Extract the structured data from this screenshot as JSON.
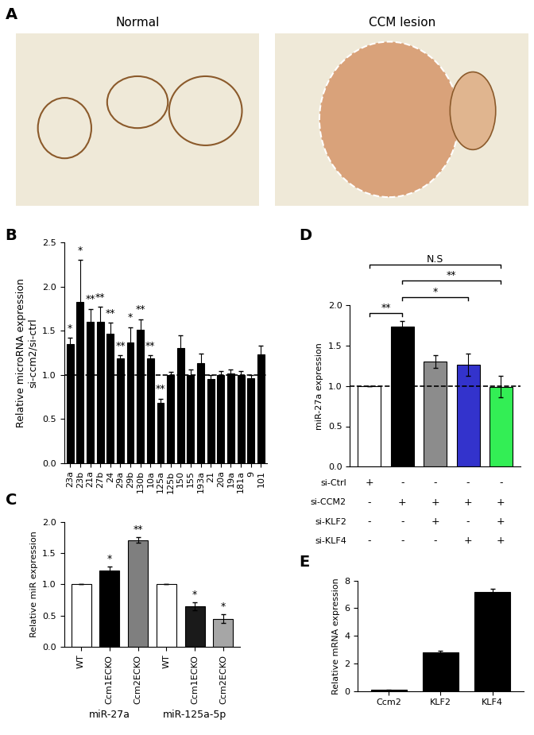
{
  "images": {
    "title": "A",
    "panels": [
      "Normal",
      "CCM lesion"
    ]
  },
  "chart_data": [
    {
      "type": "bar",
      "title": "B",
      "y_label": "Relative microRNA expression\nsi-ccm2/si-ctrl",
      "categories": [
        "23a",
        "23b",
        "21a",
        "27b",
        "24",
        "29a",
        "29b",
        "130b",
        "10a",
        "125a",
        "125b",
        "150",
        "155",
        "193a",
        "21",
        "20a",
        "19a",
        "181a",
        "9",
        "101"
      ],
      "values": [
        1.35,
        1.83,
        1.6,
        1.6,
        1.47,
        1.19,
        1.37,
        1.51,
        1.19,
        0.68,
        1.0,
        1.3,
        1.0,
        1.13,
        0.95,
        1.0,
        1.02,
        1.0,
        0.96,
        1.23
      ],
      "errors": [
        0.07,
        0.47,
        0.15,
        0.17,
        0.12,
        0.03,
        0.17,
        0.12,
        0.03,
        0.05,
        0.03,
        0.15,
        0.06,
        0.11,
        0.05,
        0.04,
        0.04,
        0.04,
        0.04,
        0.1
      ],
      "annotations": [
        "*",
        "*",
        "**",
        "**",
        "**",
        "**",
        "*",
        "**",
        "**",
        "**",
        null,
        null,
        null,
        null,
        null,
        null,
        null,
        null,
        null,
        null
      ],
      "color": "#000000",
      "reference_line": 1.0,
      "ylim": [
        0,
        2.5
      ],
      "yticks": [
        {
          "value": 0,
          "label": "0.0"
        },
        {
          "value": 0.5,
          "label": "0.5"
        },
        {
          "value": 1.0,
          "label": "1.0"
        },
        {
          "value": 1.5,
          "label": "1.5"
        },
        {
          "value": 2.0,
          "label": "2.0"
        },
        {
          "value": 2.5,
          "label": "2.5"
        }
      ]
    },
    {
      "type": "bar",
      "title": "C",
      "y_label": "Relative miR expression",
      "categories": [
        "WT",
        "Ccm1ECKO",
        "Ccm2ECKO",
        "WT",
        "Ccm1ECKO",
        "Ccm2ECKO"
      ],
      "groups": [
        "miR-27a",
        "miR-125a-5p"
      ],
      "values": [
        1.0,
        1.22,
        1.71,
        1.0,
        0.65,
        0.45
      ],
      "errors": [
        0.0,
        0.06,
        0.04,
        0.0,
        0.06,
        0.07
      ],
      "annotations": [
        null,
        "*",
        "**",
        null,
        "*",
        "*"
      ],
      "colors": [
        "#ffffff",
        "#000000",
        "#7f7f7f",
        "#ffffff",
        "#1a1a1a",
        "#a6a6a6"
      ],
      "ylim": [
        0,
        2.0
      ],
      "yticks": [
        {
          "value": 0,
          "label": "0.0"
        },
        {
          "value": 0.5,
          "label": "0.5"
        },
        {
          "value": 1.0,
          "label": "1.0"
        },
        {
          "value": 1.5,
          "label": "1.5"
        },
        {
          "value": 2.0,
          "label": "2.0"
        }
      ]
    },
    {
      "type": "bar",
      "title": "D",
      "y_label": "miR-27a expression",
      "categories": [
        null,
        null,
        null,
        null,
        null
      ],
      "values": [
        1.0,
        1.73,
        1.3,
        1.26,
        0.99
      ],
      "errors": [
        0.0,
        0.07,
        0.08,
        0.14,
        0.13
      ],
      "colors": [
        "#ffffff",
        "#000000",
        "#8c8c8c",
        "#3333cc",
        "#33ee55"
      ],
      "reference_line": 1.0,
      "tick_labels": "y",
      "comparisons": [
        {
          "from": 0,
          "to": 1,
          "label": "**"
        },
        {
          "from": 1,
          "to": 3,
          "label": "*"
        },
        {
          "from": 1,
          "to": 4,
          "label": "**"
        },
        {
          "from": 0,
          "to": 4,
          "label": "N.S"
        }
      ],
      "conditions": [
        {
          "name": "si-Ctrl",
          "values": [
            "+",
            "-",
            "-",
            "-",
            "-"
          ]
        },
        {
          "name": "si-CCM2",
          "values": [
            "-",
            "+",
            "+",
            "+",
            "+"
          ]
        },
        {
          "name": "si-KLF2",
          "values": [
            "-",
            "-",
            "+",
            "-",
            "+"
          ]
        },
        {
          "name": "si-KLF4",
          "values": [
            "-",
            "-",
            "-",
            "+",
            "+"
          ]
        }
      ],
      "ylim": [
        0,
        2.0
      ],
      "yticks": [
        {
          "value": 0,
          "label": "0.0"
        },
        {
          "value": 0.5,
          "label": "0.5"
        },
        {
          "value": 1.0,
          "label": "1.0"
        },
        {
          "value": 1.5,
          "label": "1.5"
        },
        {
          "value": 2.0,
          "label": "2.0"
        }
      ]
    },
    {
      "type": "bar",
      "title": "E",
      "y_label": "Relative mRNA expression",
      "categories": [
        "Ccm2",
        "KLF2",
        "KLF4"
      ],
      "values": [
        0.08,
        2.82,
        7.15
      ],
      "errors": [
        0.03,
        0.1,
        0.25
      ],
      "color": "#000000",
      "ylim": [
        0,
        8
      ],
      "yticks": [
        0,
        2,
        4,
        6,
        8
      ]
    }
  ]
}
